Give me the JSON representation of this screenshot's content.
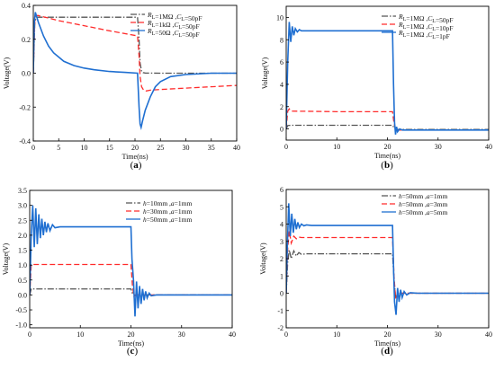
{
  "chart_data": [
    {
      "type": "line",
      "panel_label": "(a)",
      "xlabel": "Time(ns)",
      "ylabel": "Voltage(V)",
      "xlim": [
        0,
        40
      ],
      "ylim": [
        -0.4,
        0.4
      ],
      "x_ticks": [
        "0",
        "5",
        "10",
        "15",
        "20",
        "25",
        "30",
        "35",
        "40"
      ],
      "y_ticks": [
        "-0.4",
        "-0.2",
        "0.0",
        "0.2",
        "0.4"
      ],
      "legend_position": "top-right",
      "series": [
        {
          "name": "RL=1MΩ ,CL=50pF",
          "color": "#555555",
          "dash": "dashdot",
          "x": [
            0,
            0.3,
            0.6,
            1,
            5,
            10,
            15,
            20.5,
            20.8,
            21.0,
            21.3,
            21.6,
            22,
            25,
            30,
            40
          ],
          "y": [
            0,
            0.3,
            0.33,
            0.33,
            0.33,
            0.33,
            0.33,
            0.33,
            0.2,
            0.06,
            0.01,
            0.003,
            0.001,
            0.0,
            0.0,
            0.0
          ]
        },
        {
          "name": "RL=1kΩ ,CL=50pF",
          "color": "#ff2b2b",
          "dash": "dashed",
          "x": [
            0,
            0.3,
            0.6,
            1,
            5,
            10,
            15,
            20.5,
            20.8,
            21.0,
            21.3,
            21.7,
            22.2,
            23,
            25,
            30,
            35,
            40
          ],
          "y": [
            0,
            0.32,
            0.34,
            0.34,
            0.31,
            0.28,
            0.25,
            0.22,
            0.1,
            -0.02,
            -0.08,
            -0.1,
            -0.105,
            -0.1,
            -0.096,
            -0.088,
            -0.08,
            -0.072
          ]
        },
        {
          "name": "RL=50Ω ,CL=50pF",
          "color": "#1f6fd1",
          "dash": "solid",
          "x": [
            0,
            0.2,
            0.4,
            0.6,
            1,
            2,
            3,
            4,
            6,
            8,
            10,
            12,
            15,
            18,
            20.5,
            20.8,
            21.0,
            21.2,
            21.5,
            22,
            23,
            24,
            25,
            27,
            30,
            35,
            40
          ],
          "y": [
            0,
            0.3,
            0.36,
            0.34,
            0.3,
            0.22,
            0.16,
            0.12,
            0.07,
            0.045,
            0.03,
            0.02,
            0.01,
            0.005,
            0.0,
            -0.2,
            -0.3,
            -0.32,
            -0.28,
            -0.22,
            -0.14,
            -0.08,
            -0.05,
            -0.02,
            -0.008,
            0.0,
            0.0
          ]
        }
      ]
    },
    {
      "type": "line",
      "panel_label": "(b)",
      "xlabel": "Time(ns)",
      "ylabel": "Voltage(V)",
      "xlim": [
        0,
        40
      ],
      "ylim": [
        -1,
        11
      ],
      "x_ticks": [
        "0",
        "10",
        "20",
        "30",
        "40"
      ],
      "y_ticks": [
        "0",
        "2",
        "4",
        "6",
        "8",
        "10"
      ],
      "legend_position": "top-right",
      "series": [
        {
          "name": "RL=1MΩ ,CL=50pF",
          "color": "#555555",
          "dash": "dashdot",
          "x": [
            0,
            0.3,
            0.6,
            1,
            10,
            21.0,
            21.3,
            21.6,
            22,
            30,
            40
          ],
          "y": [
            0,
            0.3,
            0.32,
            0.33,
            0.33,
            0.33,
            0.1,
            0.0,
            -0.05,
            -0.05,
            -0.05
          ]
        },
        {
          "name": "RL=1MΩ ,CL=10pF",
          "color": "#ff2b2b",
          "dash": "dashed",
          "x": [
            0,
            0.3,
            0.6,
            1,
            10,
            21.0,
            21.3,
            21.6,
            22,
            30,
            40
          ],
          "y": [
            0,
            1.6,
            1.8,
            1.6,
            1.55,
            1.55,
            0.5,
            0.0,
            -0.1,
            -0.1,
            -0.1
          ]
        },
        {
          "name": "RL=1MΩ ,CL=1pF",
          "color": "#1f6fd1",
          "dash": "solid",
          "x": [
            0,
            0.3,
            0.6,
            0.9,
            1.2,
            1.5,
            1.8,
            2.2,
            2.6,
            3,
            4,
            10,
            20,
            21.0,
            21.2,
            21.4,
            21.6,
            21.8,
            22,
            22.4,
            23,
            24,
            30,
            40
          ],
          "y": [
            0,
            6.0,
            9.6,
            7.8,
            9.2,
            8.4,
            9.0,
            8.7,
            8.9,
            8.8,
            8.8,
            8.8,
            8.8,
            8.8,
            4.0,
            0.6,
            -0.5,
            0.2,
            -0.25,
            0.0,
            -0.1,
            -0.1,
            -0.1,
            -0.1
          ]
        }
      ]
    },
    {
      "type": "line",
      "panel_label": "(c)",
      "xlabel": "Time(ns)",
      "ylabel": "Voltage(V)",
      "xlim": [
        0,
        40
      ],
      "ylim": [
        -1.1,
        3.5
      ],
      "x_ticks": [
        "0",
        "10",
        "20",
        "30",
        "40"
      ],
      "y_ticks": [
        "-1.0",
        "-0.5",
        "0.0",
        "0.5",
        "1.0",
        "1.5",
        "2.0",
        "2.5",
        "3.0",
        "3.5"
      ],
      "legend_position": "top-right",
      "series": [
        {
          "name": "h=10mm ,a=1mm",
          "color": "#555555",
          "dash": "dashdot",
          "x": [
            0,
            0.3,
            0.6,
            10,
            20.0,
            20.3,
            20.6,
            30,
            40
          ],
          "y": [
            0,
            0.2,
            0.2,
            0.2,
            0.2,
            0.05,
            0.0,
            0.0,
            0.0
          ]
        },
        {
          "name": "h=30mm ,a=1mm",
          "color": "#ff2b2b",
          "dash": "dashed",
          "x": [
            0,
            0.3,
            0.6,
            10,
            20.0,
            20.3,
            20.6,
            21,
            30,
            40
          ],
          "y": [
            0,
            1.0,
            1.02,
            1.02,
            1.02,
            0.3,
            -0.05,
            0.0,
            0.0,
            0.0
          ]
        },
        {
          "name": "h=50mm ,a=1mm",
          "color": "#1f6fd1",
          "dash": "solid",
          "x": [
            0,
            0.3,
            0.6,
            0.9,
            1.2,
            1.5,
            1.8,
            2.1,
            2.4,
            2.7,
            3.0,
            3.3,
            3.6,
            4.0,
            4.5,
            5,
            6,
            10,
            20.0,
            20.2,
            20.5,
            20.8,
            21.1,
            21.4,
            21.7,
            22.0,
            22.3,
            22.6,
            22.9,
            23.2,
            23.6,
            24,
            25,
            30,
            40
          ],
          "y": [
            0,
            2.0,
            3.0,
            1.6,
            2.9,
            1.7,
            2.7,
            1.9,
            2.55,
            2.0,
            2.45,
            2.1,
            2.4,
            2.15,
            2.35,
            2.25,
            2.28,
            2.28,
            2.28,
            1.2,
            0.5,
            -0.72,
            0.45,
            -0.45,
            0.3,
            -0.3,
            0.2,
            -0.18,
            0.12,
            -0.1,
            0.06,
            -0.03,
            0.0,
            0.0,
            0.0
          ]
        }
      ]
    },
    {
      "type": "line",
      "panel_label": "(d)",
      "xlabel": "Time(ns)",
      "ylabel": "Voltage(V)",
      "xlim": [
        0,
        40
      ],
      "ylim": [
        -2,
        6
      ],
      "x_ticks": [
        "0",
        "10",
        "20",
        "30",
        "40"
      ],
      "y_ticks": [
        "-2",
        "-1",
        "0",
        "1",
        "2",
        "3",
        "4",
        "5",
        "6"
      ],
      "legend_position": "top-right",
      "series": [
        {
          "name": "h=50mm ,a=1mm",
          "color": "#555555",
          "dash": "dashdot",
          "x": [
            0,
            0.3,
            0.6,
            1.0,
            1.5,
            2.0,
            2.5,
            3.0,
            4,
            10,
            21.0,
            21.3,
            21.6,
            22,
            30,
            40
          ],
          "y": [
            0,
            1.8,
            2.5,
            2.0,
            2.45,
            2.15,
            2.35,
            2.25,
            2.28,
            2.28,
            2.28,
            0.8,
            -0.2,
            0.0,
            0.0,
            0.0
          ]
        },
        {
          "name": "h=50mm ,a=3mm",
          "color": "#ff2b2b",
          "dash": "dashed",
          "x": [
            0,
            0.3,
            0.6,
            1.0,
            1.5,
            2.0,
            2.5,
            3,
            10,
            21.0,
            21.3,
            21.6,
            22,
            30,
            40
          ],
          "y": [
            0,
            2.6,
            3.6,
            2.9,
            3.3,
            3.15,
            3.25,
            3.22,
            3.22,
            3.22,
            1.0,
            -0.3,
            0.0,
            0.0,
            0.0
          ]
        },
        {
          "name": "h=50mm ,a=5mm",
          "color": "#1f6fd1",
          "dash": "solid",
          "x": [
            0,
            0.2,
            0.5,
            0.8,
            1.1,
            1.4,
            1.7,
            2.0,
            2.3,
            2.6,
            3.0,
            3.5,
            4,
            5,
            10,
            21.0,
            21.2,
            21.4,
            21.7,
            22.0,
            22.3,
            22.6,
            22.9,
            23.3,
            23.8,
            24.5,
            26,
            30,
            40
          ],
          "y": [
            0,
            2.5,
            5.2,
            3.3,
            4.6,
            3.5,
            4.3,
            3.7,
            4.1,
            3.8,
            4.0,
            3.9,
            3.95,
            3.92,
            3.92,
            3.92,
            1.5,
            -0.5,
            -1.25,
            0.3,
            -0.5,
            0.2,
            -0.25,
            0.1,
            -0.1,
            0.03,
            0.0,
            0.0,
            0.0
          ]
        }
      ]
    }
  ]
}
